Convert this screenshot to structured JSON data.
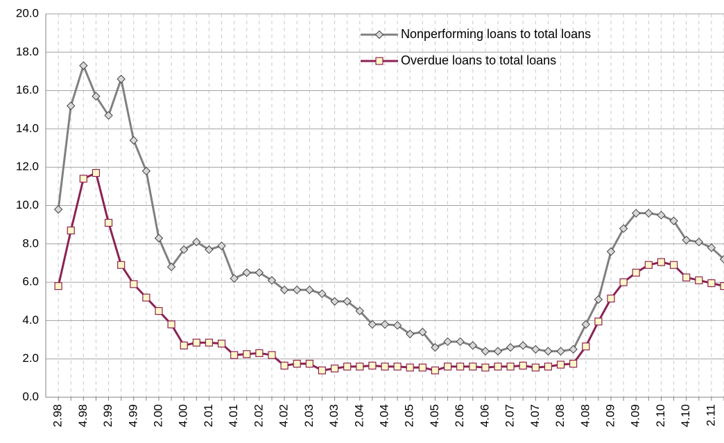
{
  "chart_data": {
    "type": "line",
    "categories": [
      "2.98",
      null,
      "4.98",
      null,
      "2.99",
      null,
      "4.99",
      null,
      "2.00",
      null,
      "4.00",
      null,
      "2.01",
      null,
      "4.01",
      null,
      "2.02",
      null,
      "4.02",
      null,
      "2.03",
      null,
      "4.03",
      null,
      "2.04",
      null,
      "4.04",
      null,
      "2.05",
      null,
      "4.05",
      null,
      "2.06",
      null,
      "4.06",
      null,
      "2.07",
      null,
      "4.07",
      null,
      "2.08",
      null,
      "4.08",
      null,
      "2.09",
      null,
      "4.09",
      null,
      "2.10",
      null,
      "4.10",
      null,
      "2.11",
      null
    ],
    "series": [
      {
        "name": "Nonperforming loans  to total loans",
        "color": "#808080",
        "marker": "diamond",
        "values": [
          9.8,
          15.2,
          17.3,
          15.7,
          14.7,
          16.6,
          13.4,
          11.8,
          8.3,
          6.8,
          7.7,
          8.1,
          7.7,
          7.9,
          6.2,
          6.5,
          6.5,
          6.1,
          5.6,
          5.6,
          5.6,
          5.4,
          5.0,
          5.0,
          4.5,
          3.8,
          3.8,
          3.75,
          3.3,
          3.4,
          2.6,
          2.9,
          2.9,
          2.7,
          2.4,
          2.4,
          2.6,
          2.7,
          2.5,
          2.4,
          2.4,
          2.5,
          3.8,
          5.1,
          7.6,
          8.8,
          9.6,
          9.6,
          9.5,
          9.2,
          8.2,
          8.1,
          7.8,
          7.2
        ]
      },
      {
        "name": "Overdue loans to total loans",
        "color": "#8b2252",
        "marker": "square",
        "values": [
          5.8,
          8.7,
          11.4,
          11.7,
          9.1,
          6.9,
          5.9,
          5.2,
          4.5,
          3.8,
          2.7,
          2.85,
          2.85,
          2.8,
          2.2,
          2.25,
          2.3,
          2.2,
          1.65,
          1.75,
          1.75,
          1.4,
          1.5,
          1.6,
          1.6,
          1.65,
          1.6,
          1.6,
          1.55,
          1.55,
          1.4,
          1.6,
          1.6,
          1.6,
          1.55,
          1.6,
          1.6,
          1.65,
          1.55,
          1.6,
          1.7,
          1.75,
          2.65,
          3.95,
          5.15,
          6.0,
          6.5,
          6.9,
          7.05,
          6.9,
          6.25,
          6.1,
          5.95,
          5.8
        ]
      }
    ],
    "ylim": [
      0,
      20
    ],
    "yticks": [
      {
        "value": 0,
        "label": "0.0"
      },
      {
        "value": 2,
        "label": "2.0"
      },
      {
        "value": 4,
        "label": "4.0"
      },
      {
        "value": 6,
        "label": "6.0"
      },
      {
        "value": 8,
        "label": "8.0"
      },
      {
        "value": 10,
        "label": "10.0"
      },
      {
        "value": 12,
        "label": "12.0"
      },
      {
        "value": 14,
        "label": "14.0"
      },
      {
        "value": 16,
        "label": "16.0"
      },
      {
        "value": 18,
        "label": "18.0"
      },
      {
        "value": 20,
        "label": "20.0"
      }
    ],
    "grid": true,
    "legend": "top-right"
  }
}
